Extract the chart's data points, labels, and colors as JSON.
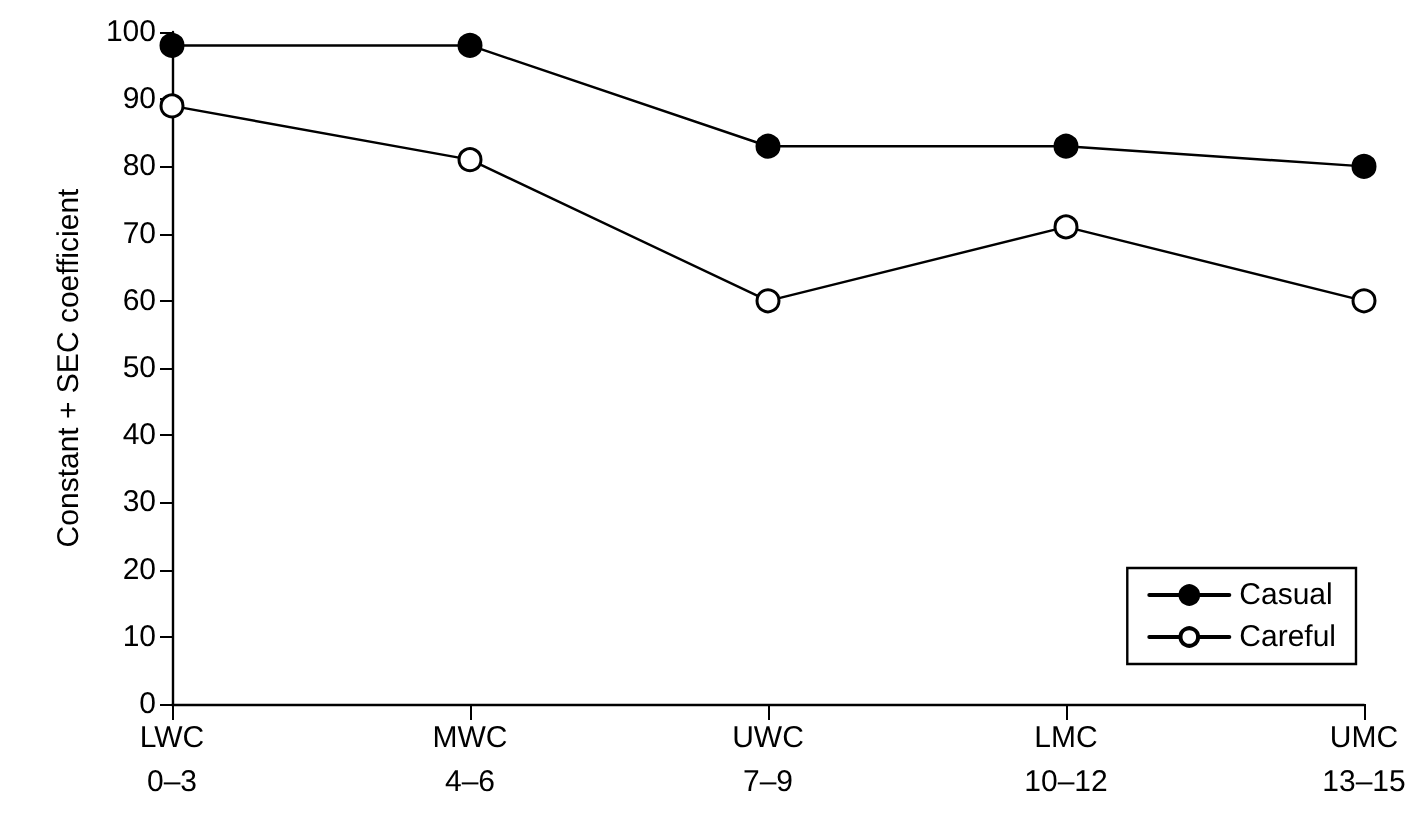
{
  "chart_data": {
    "type": "line",
    "ylabel": "Constant + SEC coefficient",
    "categories": [
      "LWC\n0–3",
      "MWC\n4–6",
      "UWC\n7–9",
      "LMC\n10–12",
      "UMC\n13–15"
    ],
    "series": [
      {
        "name": "Casual",
        "color": "#000000",
        "values": [
          98,
          98,
          83,
          83,
          80
        ]
      },
      {
        "name": "Careful",
        "color": "#000000",
        "values": [
          89,
          81,
          60,
          71,
          60
        ]
      }
    ],
    "ylim": [
      0,
      100
    ],
    "yticks": [
      0,
      10,
      20,
      30,
      40,
      50,
      60,
      70,
      80,
      90,
      100
    ],
    "grid": false,
    "legend": "bottom right",
    "marker": "circle",
    "line_style": "solid"
  }
}
